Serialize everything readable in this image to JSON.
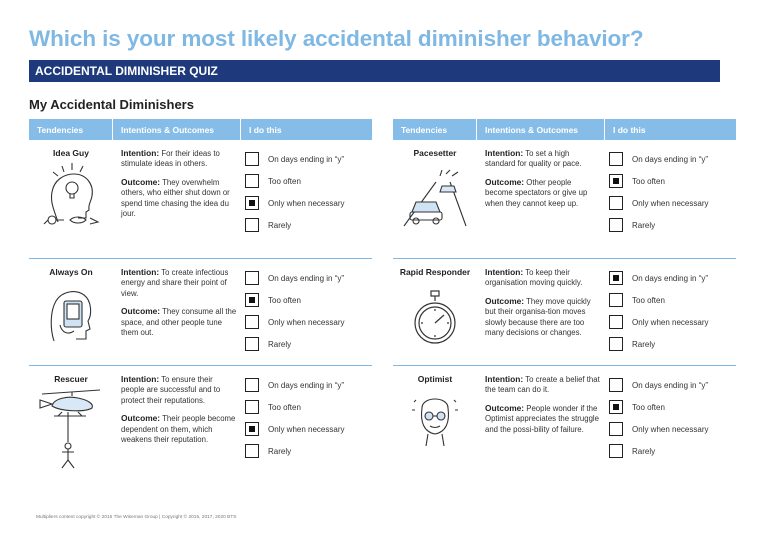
{
  "title": "Which is your most likely accidental diminisher behavior?",
  "banner": "ACCIDENTAL DIMINISHER QUIZ",
  "subtitle": "My Accidental Diminishers",
  "headers": {
    "tendencies": "Tendencies",
    "intentions": "Intentions & Outcomes",
    "ido": "I do this"
  },
  "options": [
    "On days ending in “y”",
    "Too often",
    "Only when necessary",
    "Rarely"
  ],
  "left": [
    {
      "name": "Idea Guy",
      "intention": "For their ideas to stimulate ideas in others.",
      "outcome": "They overwhelm others, who either shut down or spend time chasing the idea du jour.",
      "selected": 2
    },
    {
      "name": "Always On",
      "intention": "To create infectious energy and share their point of view.",
      "outcome": "They consume all the space, and other people tune them out.",
      "selected": 1
    },
    {
      "name": "Rescuer",
      "intention": "To ensure their people are successful and to protect their reputations.",
      "outcome": "Their people become dependent on them, which weakens their reputation.",
      "selected": 2
    }
  ],
  "right": [
    {
      "name": "Pacesetter",
      "intention": "To set a high standard for quality or pace.",
      "outcome": "Other people become spectators or give up when they cannot keep up.",
      "selected": 1
    },
    {
      "name": "Rapid Responder",
      "intention": "To keep their organisation moving quickly.",
      "outcome": "They move quickly but their organisa-tion moves slowly because there are too many decisions or changes.",
      "selected": 0
    },
    {
      "name": "Optimist",
      "intention": "To create a belief that the team can do it.",
      "outcome": "People wonder if the Optimist appreciates the struggle and the possi-bility of failure.",
      "selected": 1
    }
  ],
  "labels": {
    "intention": "Intention:",
    "outcome": "Outcome:"
  },
  "footer": "Multipliers content copyright © 2015 The Wiseman Group  |  Copyright © 2015, 2017, 2020 BTS"
}
